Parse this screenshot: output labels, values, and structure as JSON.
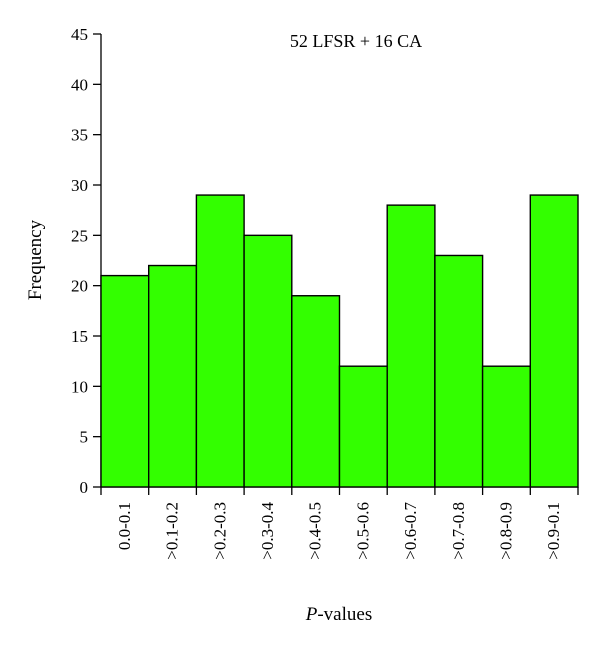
{
  "chart_data": {
    "type": "bar",
    "title": "52 LFSR + 16 CA",
    "xlabel_italic": "P",
    "xlabel_rest": "-values",
    "ylabel": "Frequency",
    "categories": [
      "0.0-0.1",
      ">0.1-0.2",
      ">0.2-0.3",
      ">0.3-0.4",
      ">0.4-0.5",
      ">0.5-0.6",
      ">0.6-0.7",
      ">0.7-0.8",
      ">0.8-0.9",
      ">0.9-0.1"
    ],
    "values": [
      21,
      22,
      29,
      25,
      19,
      12,
      28,
      23,
      12,
      29
    ],
    "ylim": [
      0,
      45
    ],
    "yticks": [
      "0",
      "5",
      "10",
      "15",
      "20",
      "25",
      "30",
      "35",
      "40",
      "45"
    ],
    "grid": false,
    "legend": "none",
    "bar_color": "#33ff00",
    "bar_edge_color": "#000000"
  }
}
